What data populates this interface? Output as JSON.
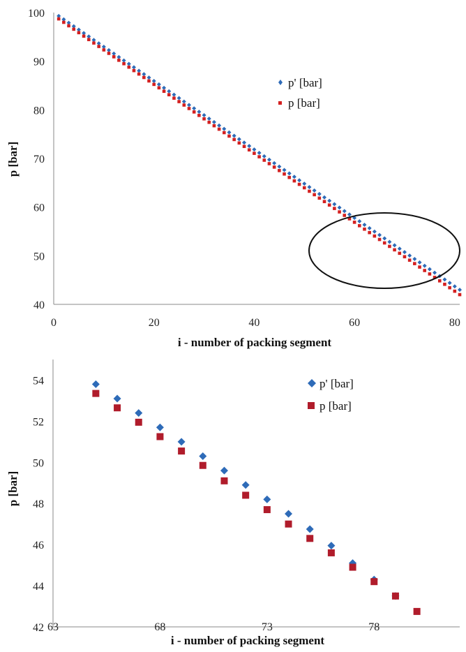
{
  "chart_data": [
    {
      "type": "scatter",
      "title": "",
      "xlabel": "i - number of packing segment",
      "ylabel": "p [bar]",
      "xlim": [
        0,
        81
      ],
      "ylim": [
        40,
        100
      ],
      "xticks": [
        0,
        20,
        40,
        60,
        80
      ],
      "yticks": [
        40,
        50,
        60,
        70,
        80,
        90,
        100
      ],
      "grid": false,
      "legend": {
        "placement": "upper-right-inside",
        "entries": [
          "p' [bar]",
          "p [bar]"
        ]
      },
      "annotation": "ellipse highlighting i ≈ 52–81, p ≈ 41–59",
      "series": [
        {
          "name": "p' [bar]",
          "color": "#2e6bb8",
          "marker": "diamond",
          "x": [
            1,
            81
          ],
          "y": [
            99.3,
            43.0
          ],
          "x_range": [
            1,
            81
          ],
          "note": "approximately linear, offset above p for i > 55"
        },
        {
          "name": "p [bar]",
          "color": "#d42020",
          "marker": "square",
          "x_range": [
            1,
            81
          ],
          "x": [
            1,
            81
          ],
          "y": [
            98.7,
            42.0
          ]
        }
      ]
    },
    {
      "type": "scatter",
      "title": "",
      "xlabel": "i - number of packing segment",
      "ylabel": "p [bar]",
      "xlim": [
        63,
        82
      ],
      "ylim": [
        42,
        55
      ],
      "xticks": [
        63,
        68,
        73,
        78
      ],
      "yticks": [
        42,
        44,
        46,
        48,
        50,
        52,
        54
      ],
      "grid": false,
      "legend": {
        "placement": "upper-right-inside",
        "entries": [
          "p' [bar]",
          "p [bar]"
        ]
      },
      "series": [
        {
          "name": "p' [bar]",
          "color": "#2e6bb8",
          "marker": "diamond",
          "x": [
            65,
            66,
            67,
            68,
            69,
            70,
            71,
            72,
            73,
            74,
            75,
            76,
            77,
            78,
            79
          ],
          "y": [
            53.8,
            53.1,
            52.4,
            51.7,
            51.0,
            50.3,
            49.6,
            48.9,
            48.2,
            47.5,
            46.75,
            45.95,
            45.1,
            44.3,
            43.5
          ]
        },
        {
          "name": "p [bar]",
          "color": "#b01c2b",
          "marker": "square",
          "x": [
            65,
            66,
            67,
            68,
            69,
            70,
            71,
            72,
            73,
            74,
            75,
            76,
            77,
            78,
            79,
            80
          ],
          "y": [
            53.35,
            52.65,
            51.95,
            51.25,
            50.55,
            49.85,
            49.1,
            48.4,
            47.7,
            47.0,
            46.3,
            45.6,
            44.9,
            44.2,
            43.5,
            42.75
          ]
        }
      ]
    }
  ]
}
